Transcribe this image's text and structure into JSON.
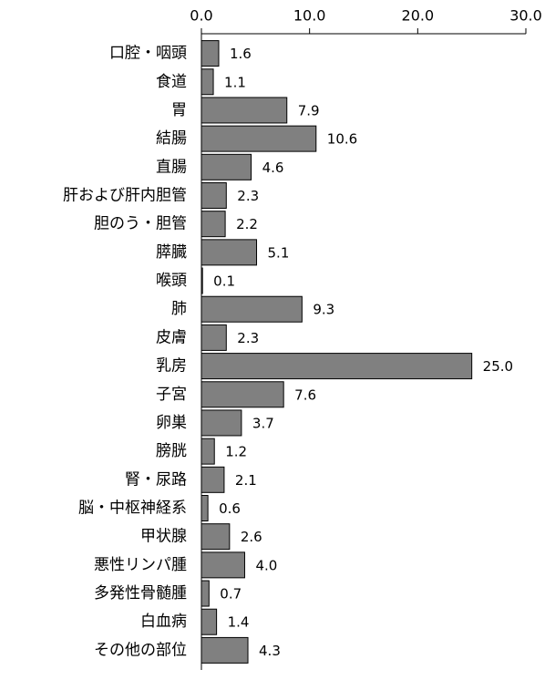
{
  "chart_data": {
    "type": "barh",
    "categories": [
      "口腔・咽頭",
      "食道",
      "胃",
      "結腸",
      "直腸",
      "肝および肝内胆管",
      "胆のう・胆管",
      "膵臓",
      "喉頭",
      "肺",
      "皮膚",
      "乳房",
      "子宮",
      "卵巣",
      "膀胱",
      "腎・尿路",
      "脳・中枢神経系",
      "甲状腺",
      "悪性リンパ腫",
      "多発性骨髄腫",
      "白血病",
      "その他の部位"
    ],
    "values": [
      1.6,
      1.1,
      7.9,
      10.6,
      4.6,
      2.3,
      2.2,
      5.1,
      0.1,
      9.3,
      2.3,
      25.0,
      7.6,
      3.7,
      1.2,
      2.1,
      0.6,
      2.6,
      4.0,
      0.7,
      1.4,
      4.3
    ],
    "value_labels": [
      "1.6",
      "1.1",
      "7.9",
      "10.6",
      "4.6",
      "2.3",
      "2.2",
      "5.1",
      "0.1",
      "9.3",
      "2.3",
      "25.0",
      "7.6",
      "3.7",
      "1.2",
      "2.1",
      "0.6",
      "2.6",
      "4.0",
      "0.7",
      "1.4",
      "4.3"
    ],
    "color": "#808080",
    "xlim": [
      0,
      30
    ],
    "xticks": [
      {
        "value": 0,
        "label": "0.0"
      },
      {
        "value": 10,
        "label": "10.0"
      },
      {
        "value": 20,
        "label": "20.0"
      },
      {
        "value": 30,
        "label": "30.0"
      }
    ],
    "grid": false
  }
}
